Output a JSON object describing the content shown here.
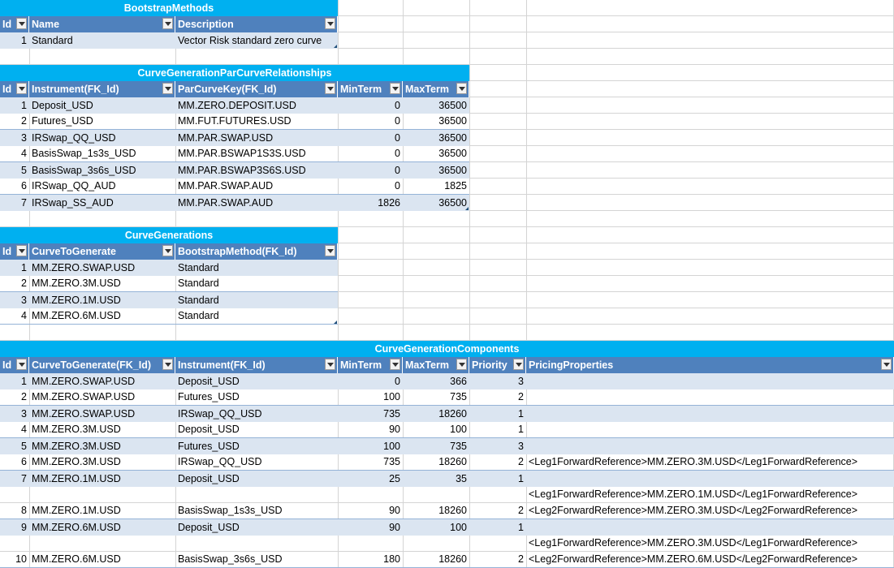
{
  "bootstrap_methods": {
    "title": "BootstrapMethods",
    "headers": [
      "Id",
      "Name",
      "Description"
    ],
    "rows": [
      [
        "1",
        "Standard",
        "Vector Risk standard zero curve"
      ]
    ]
  },
  "par_curve_relationships": {
    "title": "CurveGenerationParCurveRelationships",
    "headers": [
      "Id",
      "Instrument(FK_Id)",
      "ParCurveKey(FK_Id)",
      "MinTerm",
      "MaxTerm"
    ],
    "rows": [
      [
        "1",
        "Deposit_USD",
        "MM.ZERO.DEPOSIT.USD",
        "0",
        "36500"
      ],
      [
        "2",
        "Futures_USD",
        "MM.FUT.FUTURES.USD",
        "0",
        "36500"
      ],
      [
        "3",
        "IRSwap_QQ_USD",
        "MM.PAR.SWAP.USD",
        "0",
        "36500"
      ],
      [
        "4",
        "BasisSwap_1s3s_USD",
        "MM.PAR.BSWAP1S3S.USD",
        "0",
        "36500"
      ],
      [
        "5",
        "BasisSwap_3s6s_USD",
        "MM.PAR.BSWAP3S6S.USD",
        "0",
        "36500"
      ],
      [
        "6",
        "IRSwap_QQ_AUD",
        "MM.PAR.SWAP.AUD",
        "0",
        "1825"
      ],
      [
        "7",
        "IRSwap_SS_AUD",
        "MM.PAR.SWAP.AUD",
        "1826",
        "36500"
      ]
    ]
  },
  "curve_generations": {
    "title": "CurveGenerations",
    "headers": [
      "Id",
      "CurveToGenerate",
      "BootstrapMethod(FK_Id)"
    ],
    "rows": [
      [
        "1",
        "MM.ZERO.SWAP.USD",
        "Standard"
      ],
      [
        "2",
        "MM.ZERO.3M.USD",
        "Standard"
      ],
      [
        "3",
        "MM.ZERO.1M.USD",
        "Standard"
      ],
      [
        "4",
        "MM.ZERO.6M.USD",
        "Standard"
      ]
    ]
  },
  "curve_generation_components": {
    "title": "CurveGenerationComponents",
    "headers": [
      "Id",
      "CurveToGenerate(FK_Id)",
      "Instrument(FK_Id)",
      "MinTerm",
      "MaxTerm",
      "Priority",
      "PricingProperties"
    ],
    "rows": [
      [
        "1",
        "MM.ZERO.SWAP.USD",
        "Deposit_USD",
        "0",
        "366",
        "3",
        ""
      ],
      [
        "2",
        "MM.ZERO.SWAP.USD",
        "Futures_USD",
        "100",
        "735",
        "2",
        ""
      ],
      [
        "3",
        "MM.ZERO.SWAP.USD",
        "IRSwap_QQ_USD",
        "735",
        "18260",
        "1",
        ""
      ],
      [
        "4",
        "MM.ZERO.3M.USD",
        "Deposit_USD",
        "90",
        "100",
        "1",
        ""
      ],
      [
        "5",
        "MM.ZERO.3M.USD",
        "Futures_USD",
        "100",
        "735",
        "3",
        ""
      ],
      [
        "6",
        "MM.ZERO.3M.USD",
        "IRSwap_QQ_USD",
        "735",
        "18260",
        "2",
        "<Leg1ForwardReference>MM.ZERO.3M.USD</Leg1ForwardReference>"
      ],
      [
        "7",
        "MM.ZERO.1M.USD",
        "Deposit_USD",
        "25",
        "35",
        "1",
        ""
      ],
      [
        "8",
        "MM.ZERO.1M.USD",
        "BasisSwap_1s3s_USD",
        "90",
        "18260",
        "2",
        "<Leg1ForwardReference>MM.ZERO.1M.USD</Leg1ForwardReference>\n<Leg2ForwardReference>MM.ZERO.3M.USD</Leg2ForwardReference>"
      ],
      [
        "9",
        "MM.ZERO.6M.USD",
        "Deposit_USD",
        "90",
        "100",
        "1",
        ""
      ],
      [
        "10",
        "MM.ZERO.6M.USD",
        "BasisSwap_3s6s_USD",
        "180",
        "18260",
        "2",
        "<Leg1ForwardReference>MM.ZERO.3M.USD</Leg1ForwardReference>\n<Leg2ForwardReference>MM.ZERO.6M.USD</Leg2ForwardReference>"
      ]
    ]
  }
}
